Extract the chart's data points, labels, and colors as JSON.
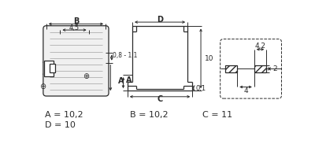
{
  "bg_color": "#ffffff",
  "line_color": "#2a2a2a",
  "dim_color": "#2a2a2a",
  "text_color": "#2a2a2a",
  "labels": {
    "A": "A = 10,2",
    "B": "B = 10,2",
    "C": "C = 11",
    "D": "D = 10"
  },
  "dims": {
    "B_label": "B",
    "D_label": "D",
    "val_45": "4,5",
    "val_08_11": "0,8 - 1,1",
    "val_A": "A",
    "val_10": "10",
    "val_01": "0,1",
    "val_C": "C",
    "val_42": "4,2",
    "val_2": "2",
    "val_4": "4"
  },
  "minus_sym": "⊖",
  "plus_sym": "⊕"
}
